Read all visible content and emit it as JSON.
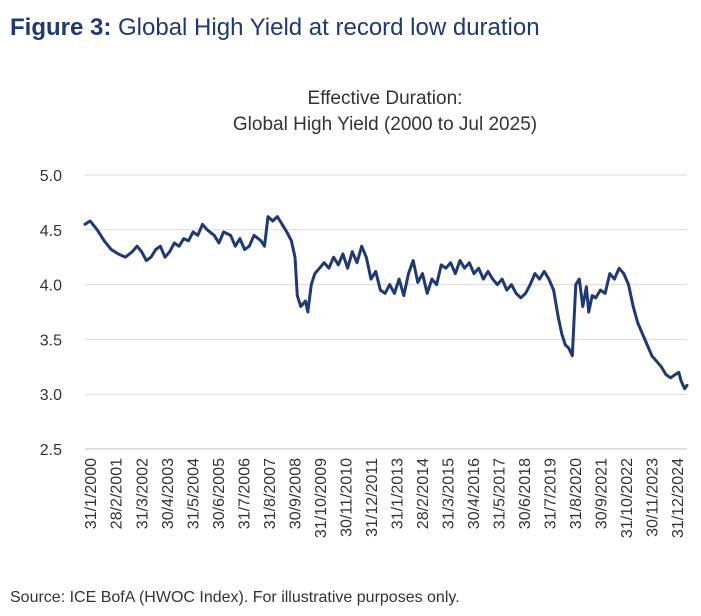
{
  "figure": {
    "number": "Figure 3:",
    "title": "Global High Yield at record low duration"
  },
  "source": "Source: ICE BofA (HWOC Index). For illustrative purposes only.",
  "chart_data": {
    "type": "line",
    "title": [
      "Effective Duration:",
      "Global High Yield (2000 to Jul 2025)"
    ],
    "xlabel": "",
    "ylabel": "",
    "ylim": [
      2.5,
      5.0
    ],
    "y_ticks": [
      "2.5",
      "3.0",
      "3.5",
      "4.0",
      "4.5",
      "5.0"
    ],
    "grid": "horizontal",
    "legend": "none",
    "line_color": "#1f3a73",
    "x_ticks": [
      "31/1/2000",
      "28/2/2001",
      "31/3/2002",
      "30/4/2003",
      "31/5/2004",
      "30/6/2005",
      "31/7/2006",
      "31/8/2007",
      "30/9/2008",
      "31/10/2009",
      "30/11/2010",
      "31/12/2011",
      "31/1/2013",
      "28/2/2014",
      "31/3/2015",
      "30/4/2016",
      "31/5/2017",
      "30/6/2018",
      "31/7/2019",
      "31/8/2020",
      "30/9/2021",
      "31/10/2022",
      "30/11/2023",
      "31/12/2024"
    ],
    "series": [
      {
        "points": [
          [
            2000.08,
            4.55
          ],
          [
            2000.3,
            4.58
          ],
          [
            2000.6,
            4.5
          ],
          [
            2000.9,
            4.4
          ],
          [
            2001.2,
            4.32
          ],
          [
            2001.5,
            4.28
          ],
          [
            2001.8,
            4.25
          ],
          [
            2002.1,
            4.3
          ],
          [
            2002.3,
            4.35
          ],
          [
            2002.5,
            4.3
          ],
          [
            2002.7,
            4.22
          ],
          [
            2002.9,
            4.25
          ],
          [
            2003.1,
            4.32
          ],
          [
            2003.3,
            4.35
          ],
          [
            2003.5,
            4.25
          ],
          [
            2003.7,
            4.3
          ],
          [
            2003.9,
            4.38
          ],
          [
            2004.1,
            4.35
          ],
          [
            2004.3,
            4.42
          ],
          [
            2004.5,
            4.4
          ],
          [
            2004.7,
            4.48
          ],
          [
            2004.9,
            4.45
          ],
          [
            2005.1,
            4.55
          ],
          [
            2005.3,
            4.5
          ],
          [
            2005.6,
            4.45
          ],
          [
            2005.8,
            4.38
          ],
          [
            2006.0,
            4.48
          ],
          [
            2006.3,
            4.45
          ],
          [
            2006.5,
            4.35
          ],
          [
            2006.7,
            4.42
          ],
          [
            2006.9,
            4.32
          ],
          [
            2007.1,
            4.35
          ],
          [
            2007.3,
            4.45
          ],
          [
            2007.6,
            4.4
          ],
          [
            2007.75,
            4.35
          ],
          [
            2007.9,
            4.62
          ],
          [
            2008.1,
            4.58
          ],
          [
            2008.3,
            4.62
          ],
          [
            2008.5,
            4.55
          ],
          [
            2008.7,
            4.48
          ],
          [
            2008.9,
            4.4
          ],
          [
            2009.05,
            4.25
          ],
          [
            2009.15,
            3.9
          ],
          [
            2009.3,
            3.8
          ],
          [
            2009.5,
            3.85
          ],
          [
            2009.6,
            3.75
          ],
          [
            2009.75,
            4.0
          ],
          [
            2009.9,
            4.1
          ],
          [
            2010.1,
            4.15
          ],
          [
            2010.3,
            4.2
          ],
          [
            2010.5,
            4.15
          ],
          [
            2010.7,
            4.25
          ],
          [
            2010.9,
            4.18
          ],
          [
            2011.1,
            4.28
          ],
          [
            2011.3,
            4.15
          ],
          [
            2011.5,
            4.3
          ],
          [
            2011.7,
            4.2
          ],
          [
            2011.9,
            4.35
          ],
          [
            2012.1,
            4.25
          ],
          [
            2012.3,
            4.05
          ],
          [
            2012.5,
            4.12
          ],
          [
            2012.7,
            3.95
          ],
          [
            2012.9,
            3.92
          ],
          [
            2013.1,
            4.0
          ],
          [
            2013.3,
            3.92
          ],
          [
            2013.5,
            4.05
          ],
          [
            2013.7,
            3.9
          ],
          [
            2013.9,
            4.1
          ],
          [
            2014.1,
            4.22
          ],
          [
            2014.3,
            4.02
          ],
          [
            2014.5,
            4.1
          ],
          [
            2014.7,
            3.92
          ],
          [
            2014.9,
            4.05
          ],
          [
            2015.1,
            4.0
          ],
          [
            2015.3,
            4.18
          ],
          [
            2015.5,
            4.15
          ],
          [
            2015.7,
            4.2
          ],
          [
            2015.9,
            4.1
          ],
          [
            2016.1,
            4.22
          ],
          [
            2016.3,
            4.15
          ],
          [
            2016.5,
            4.2
          ],
          [
            2016.7,
            4.1
          ],
          [
            2016.9,
            4.15
          ],
          [
            2017.1,
            4.05
          ],
          [
            2017.3,
            4.12
          ],
          [
            2017.5,
            4.05
          ],
          [
            2017.7,
            4.0
          ],
          [
            2017.9,
            4.05
          ],
          [
            2018.1,
            3.95
          ],
          [
            2018.3,
            4.0
          ],
          [
            2018.5,
            3.92
          ],
          [
            2018.7,
            3.88
          ],
          [
            2018.9,
            3.92
          ],
          [
            2019.1,
            4.0
          ],
          [
            2019.3,
            4.1
          ],
          [
            2019.5,
            4.05
          ],
          [
            2019.7,
            4.12
          ],
          [
            2019.9,
            4.05
          ],
          [
            2020.1,
            3.95
          ],
          [
            2020.3,
            3.7
          ],
          [
            2020.45,
            3.55
          ],
          [
            2020.6,
            3.45
          ],
          [
            2020.75,
            3.42
          ],
          [
            2020.9,
            3.35
          ],
          [
            2021.05,
            4.0
          ],
          [
            2021.2,
            4.05
          ],
          [
            2021.35,
            3.8
          ],
          [
            2021.5,
            3.98
          ],
          [
            2021.6,
            3.75
          ],
          [
            2021.75,
            3.9
          ],
          [
            2021.9,
            3.88
          ],
          [
            2022.1,
            3.95
          ],
          [
            2022.3,
            3.92
          ],
          [
            2022.5,
            4.1
          ],
          [
            2022.7,
            4.05
          ],
          [
            2022.9,
            4.15
          ],
          [
            2023.1,
            4.1
          ],
          [
            2023.3,
            4.0
          ],
          [
            2023.5,
            3.8
          ],
          [
            2023.7,
            3.65
          ],
          [
            2023.9,
            3.55
          ],
          [
            2024.1,
            3.45
          ],
          [
            2024.3,
            3.35
          ],
          [
            2024.5,
            3.3
          ],
          [
            2024.7,
            3.25
          ],
          [
            2024.9,
            3.18
          ],
          [
            2025.1,
            3.15
          ],
          [
            2025.3,
            3.18
          ],
          [
            2025.45,
            3.2
          ],
          [
            2025.55,
            3.12
          ],
          [
            2025.7,
            3.05
          ],
          [
            2025.8,
            3.08
          ]
        ]
      }
    ]
  }
}
